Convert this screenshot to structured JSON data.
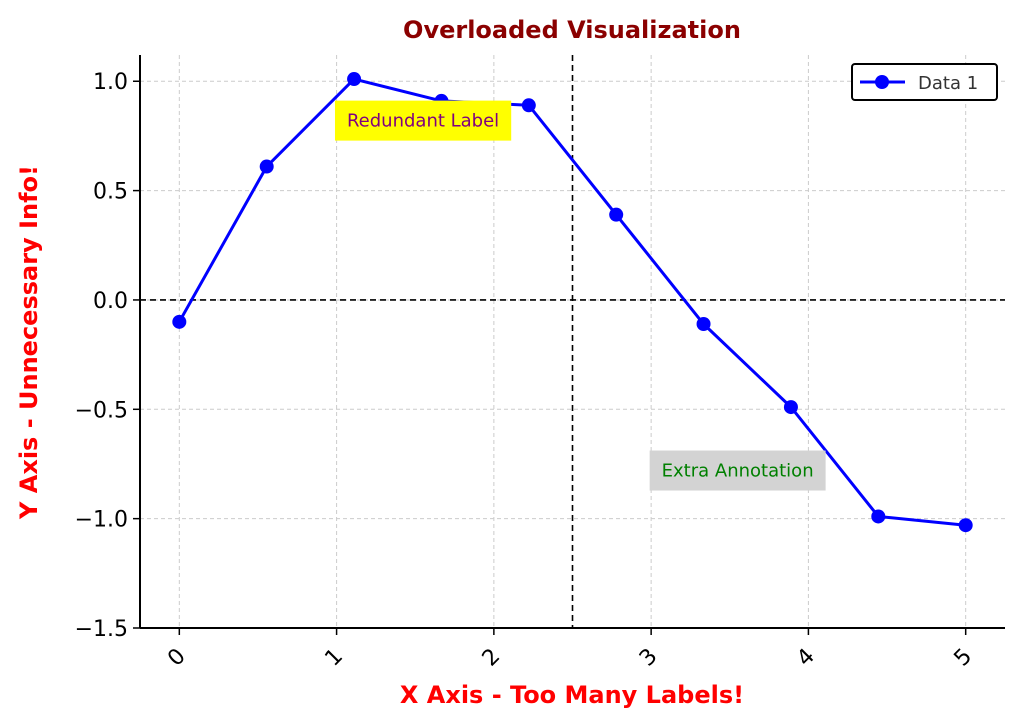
{
  "chart_data": {
    "type": "line",
    "title": "Overloaded Visualization",
    "xlabel": "X Axis - Too Many Labels!",
    "ylabel": "Y Axis - Unnecessary Info!",
    "xlim": [
      -0.25,
      5.25
    ],
    "ylim": [
      -1.5,
      1.12
    ],
    "x_ticks": [
      0,
      1,
      2,
      3,
      4,
      5
    ],
    "x_tick_labels": [
      "0",
      "1",
      "2",
      "3",
      "4",
      "5"
    ],
    "y_ticks": [
      1.0,
      0.5,
      0.0,
      -0.5,
      -1.0,
      -1.5
    ],
    "y_tick_labels": [
      "1.0",
      "0.5",
      "0.0",
      "−0.5",
      "−1.0",
      "−1.5"
    ],
    "grid": true,
    "legend_position": "top-right",
    "series": [
      {
        "name": "Data 1",
        "color": "#0000ff",
        "x": [
          0,
          0.5556,
          1.1111,
          1.6667,
          2.2222,
          2.7778,
          3.3333,
          3.8889,
          4.4444,
          5.0
        ],
        "y": [
          -0.1,
          0.61,
          1.01,
          0.91,
          0.89,
          0.39,
          -0.11,
          -0.49,
          -0.99,
          -1.03
        ]
      }
    ],
    "reference_lines": {
      "horizontal_y": 0,
      "vertical_x": 2.5
    },
    "annotations": [
      {
        "text": "Redundant Label",
        "x": 1.55,
        "y": 0.82,
        "bg": "#ffff00",
        "color": "#800080"
      },
      {
        "text": "Extra Annotation",
        "x": 3.55,
        "y": -0.78,
        "bg": "#d3d3d3",
        "color": "#008000"
      }
    ],
    "colors": {
      "title": "#8b0000",
      "axis_labels": "#ff0000",
      "grid": "#cccccc"
    }
  }
}
